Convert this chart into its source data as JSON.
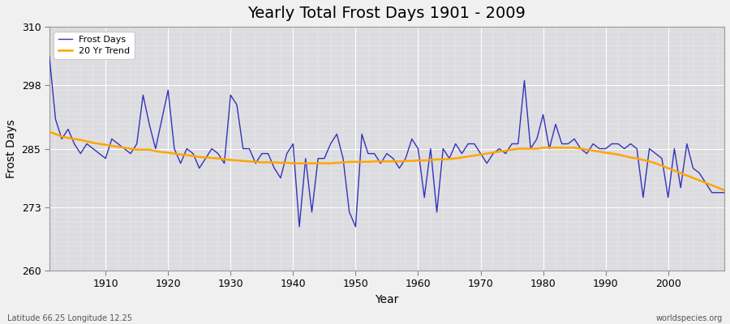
{
  "title": "Yearly Total Frost Days 1901 - 2009",
  "xlabel": "Year",
  "ylabel": "Frost Days",
  "subtitle": "Latitude 66.25 Longitude 12.25",
  "watermark": "worldspecies.org",
  "years": [
    1901,
    1902,
    1903,
    1904,
    1905,
    1906,
    1907,
    1908,
    1909,
    1910,
    1911,
    1912,
    1913,
    1914,
    1915,
    1916,
    1917,
    1918,
    1919,
    1920,
    1921,
    1922,
    1923,
    1924,
    1925,
    1926,
    1927,
    1928,
    1929,
    1930,
    1931,
    1932,
    1933,
    1934,
    1935,
    1936,
    1937,
    1938,
    1939,
    1940,
    1941,
    1942,
    1943,
    1944,
    1945,
    1946,
    1947,
    1948,
    1949,
    1950,
    1951,
    1952,
    1953,
    1954,
    1955,
    1956,
    1957,
    1958,
    1959,
    1960,
    1961,
    1962,
    1963,
    1964,
    1965,
    1966,
    1967,
    1968,
    1969,
    1970,
    1971,
    1972,
    1973,
    1974,
    1975,
    1976,
    1977,
    1978,
    1979,
    1980,
    1981,
    1982,
    1983,
    1984,
    1985,
    1986,
    1987,
    1988,
    1989,
    1990,
    1991,
    1992,
    1993,
    1994,
    1995,
    1996,
    1997,
    1998,
    1999,
    2000,
    2001,
    2002,
    2003,
    2004,
    2005,
    2006,
    2007,
    2008,
    2009
  ],
  "frost_days": [
    304,
    291,
    287,
    289,
    286,
    284,
    286,
    285,
    284,
    283,
    287,
    286,
    285,
    284,
    286,
    296,
    290,
    285,
    291,
    297,
    285,
    282,
    285,
    284,
    281,
    283,
    285,
    284,
    282,
    296,
    294,
    285,
    285,
    282,
    284,
    284,
    281,
    279,
    284,
    286,
    269,
    283,
    272,
    283,
    283,
    286,
    288,
    283,
    272,
    269,
    288,
    284,
    284,
    282,
    284,
    283,
    281,
    283,
    287,
    285,
    275,
    285,
    272,
    285,
    283,
    286,
    284,
    286,
    286,
    284,
    282,
    284,
    285,
    284,
    286,
    286,
    299,
    285,
    287,
    292,
    285,
    290,
    286,
    286,
    287,
    285,
    284,
    286,
    285,
    285,
    286,
    286,
    285,
    286,
    285,
    275,
    285,
    284,
    283,
    275,
    285,
    277,
    286,
    281,
    280,
    278,
    276,
    276,
    276
  ],
  "trend_years": [
    1901,
    1902,
    1903,
    1904,
    1905,
    1906,
    1907,
    1908,
    1909,
    1910,
    1911,
    1912,
    1913,
    1914,
    1915,
    1916,
    1917,
    1918,
    1919,
    1920,
    1921,
    1922,
    1923,
    1924,
    1925,
    1926,
    1927,
    1928,
    1929,
    1930,
    1931,
    1932,
    1933,
    1934,
    1935,
    1936,
    1937,
    1938,
    1939,
    1940,
    1941,
    1942,
    1943,
    1944,
    1945,
    1946,
    1947,
    1948,
    1949,
    1950,
    1951,
    1952,
    1953,
    1954,
    1955,
    1956,
    1957,
    1958,
    1959,
    1960,
    1961,
    1962,
    1963,
    1964,
    1965,
    1966,
    1967,
    1968,
    1969,
    1970,
    1971,
    1972,
    1973,
    1974,
    1975,
    1976,
    1977,
    1978,
    1979,
    1980,
    1981,
    1982,
    1983,
    1984,
    1985,
    1986,
    1987,
    1988,
    1989,
    1990,
    1991,
    1992,
    1993,
    1994,
    1995,
    1996,
    1997,
    1998,
    1999,
    2000,
    2001,
    2002,
    2003,
    2004,
    2005,
    2006,
    2007,
    2008,
    2009
  ],
  "trend_values": [
    288.5,
    288.0,
    287.5,
    287.2,
    287.0,
    286.8,
    286.5,
    286.2,
    286.0,
    285.8,
    285.6,
    285.4,
    285.2,
    285.0,
    284.8,
    284.8,
    284.8,
    284.5,
    284.3,
    284.2,
    284.0,
    283.8,
    283.7,
    283.5,
    283.3,
    283.2,
    283.1,
    283.0,
    282.8,
    282.7,
    282.6,
    282.5,
    282.4,
    282.3,
    282.2,
    282.2,
    282.2,
    282.1,
    282.1,
    282.0,
    282.0,
    282.0,
    282.0,
    282.0,
    282.0,
    282.0,
    282.1,
    282.2,
    282.3,
    282.3,
    282.3,
    282.3,
    282.4,
    282.4,
    282.4,
    282.4,
    282.4,
    282.5,
    282.5,
    282.6,
    282.6,
    282.7,
    282.8,
    282.8,
    282.9,
    283.0,
    283.2,
    283.4,
    283.6,
    283.8,
    284.0,
    284.2,
    284.4,
    284.6,
    284.8,
    285.0,
    285.0,
    285.0,
    285.0,
    285.2,
    285.2,
    285.2,
    285.2,
    285.2,
    285.2,
    285.0,
    284.8,
    284.6,
    284.4,
    284.2,
    284.0,
    283.8,
    283.5,
    283.2,
    283.0,
    282.7,
    282.4,
    282.0,
    281.5,
    281.0,
    280.5,
    280.0,
    279.5,
    279.0,
    278.5,
    278.0,
    277.5,
    277.0,
    276.5
  ],
  "line_color": "#3333bb",
  "trend_color": "#FFA500",
  "fig_bg": "#f0f0f0",
  "plot_bg": "#dcdce0",
  "ylim": [
    260,
    310
  ],
  "yticks": [
    260,
    273,
    285,
    298,
    310
  ],
  "xticks": [
    1910,
    1920,
    1930,
    1940,
    1950,
    1960,
    1970,
    1980,
    1990,
    2000
  ],
  "title_fontsize": 14,
  "axis_fontsize": 9,
  "label_fontsize": 10
}
